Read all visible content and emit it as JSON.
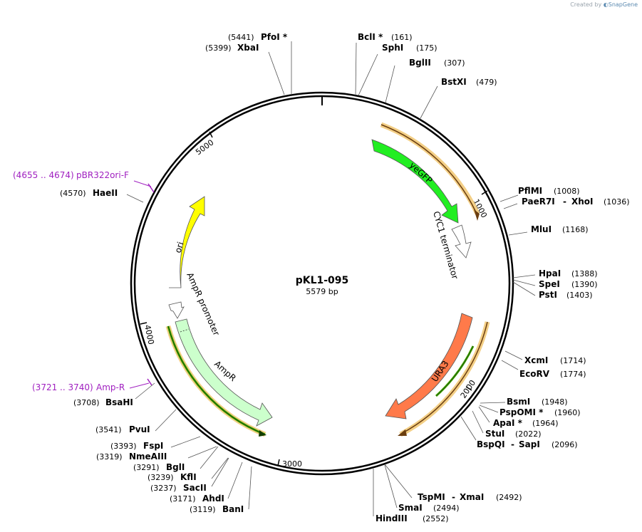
{
  "watermark": {
    "prefix": "Created by",
    "brand": "SnapGene"
  },
  "plasmid": {
    "name": "pKL1-095",
    "size_label": "5579 bp",
    "length": 5579
  },
  "ticks": [
    "1000",
    "2000",
    "3000",
    "4000",
    "5000"
  ],
  "features": [
    {
      "id": "yegfp",
      "label": "yeGFP",
      "color": "#22dd22"
    },
    {
      "id": "cyc1",
      "label": "CYC1 terminator",
      "color": "#ffffff"
    },
    {
      "id": "ura3",
      "label": "URA3",
      "color": "#ff7a4a"
    },
    {
      "id": "ampr",
      "label": "AmpR",
      "color": "#ccffcc"
    },
    {
      "id": "ampr-promoter",
      "label": "AmpR promoter",
      "color": "#ffffff"
    },
    {
      "id": "ori",
      "label": "ori",
      "color": "#ffff00"
    }
  ],
  "primers": [
    {
      "range": "(4655 .. 4674)",
      "name": "pBR322ori-F"
    },
    {
      "range": "(3721 .. 3740)",
      "name": "Amp-R"
    }
  ],
  "enzymes": [
    {
      "name": "PfoI *",
      "pos": "(5441)"
    },
    {
      "name": "XbaI",
      "pos": "(5399)"
    },
    {
      "name": "BclI *",
      "pos": "(161)"
    },
    {
      "name": "SphI",
      "pos": "(175)"
    },
    {
      "name": "BglII",
      "pos": "(307)"
    },
    {
      "name": "BstXI",
      "pos": "(479)"
    },
    {
      "name": "PflMI",
      "pos": "(1008)"
    },
    {
      "name": "PaeR7I",
      "pos": ""
    },
    {
      "name": "XhoI",
      "pos": "(1036)"
    },
    {
      "name": "MluI",
      "pos": "(1168)"
    },
    {
      "name": "HpaI",
      "pos": "(1388)"
    },
    {
      "name": "SpeI",
      "pos": "(1390)"
    },
    {
      "name": "PstI",
      "pos": "(1403)"
    },
    {
      "name": "XcmI",
      "pos": "(1714)"
    },
    {
      "name": "EcoRV",
      "pos": "(1774)"
    },
    {
      "name": "BsmI",
      "pos": "(1948)"
    },
    {
      "name": "PspOMI *",
      "pos": "(1960)"
    },
    {
      "name": "ApaI *",
      "pos": "(1964)"
    },
    {
      "name": "StuI",
      "pos": "(2022)"
    },
    {
      "name": "BspQI",
      "pos": ""
    },
    {
      "name": "SapI",
      "pos": "(2096)"
    },
    {
      "name": "TspMI",
      "pos": ""
    },
    {
      "name": "XmaI",
      "pos": "(2492)"
    },
    {
      "name": "SmaI",
      "pos": "(2494)"
    },
    {
      "name": "HindIII",
      "pos": "(2552)"
    },
    {
      "name": "BanI",
      "pos": "(3119)"
    },
    {
      "name": "AhdI",
      "pos": "(3171)"
    },
    {
      "name": "SacII",
      "pos": "(3237)"
    },
    {
      "name": "KflI",
      "pos": "(3239)"
    },
    {
      "name": "BglI",
      "pos": "(3291)"
    },
    {
      "name": "NmeAIII",
      "pos": "(3319)"
    },
    {
      "name": "FspI",
      "pos": "(3393)"
    },
    {
      "name": "PvuI",
      "pos": "(3541)"
    },
    {
      "name": "BsaHI",
      "pos": "(3708)"
    },
    {
      "name": "HaeII",
      "pos": "(4570)"
    }
  ]
}
